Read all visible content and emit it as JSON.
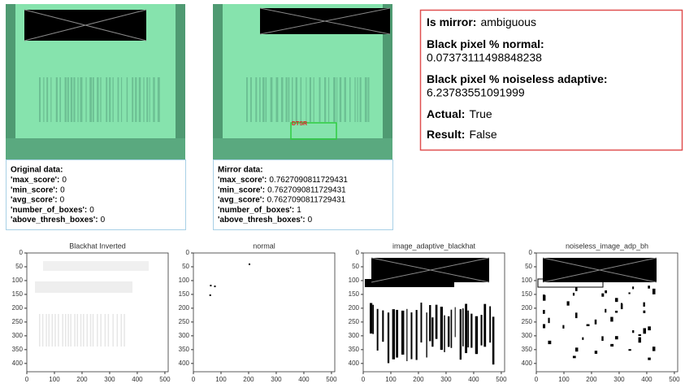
{
  "original": {
    "heading": "Original data:",
    "rows": [
      [
        "'max_score':",
        "0"
      ],
      [
        "'min_score':",
        "0"
      ],
      [
        "'avg_score':",
        "0"
      ],
      [
        "'number_of_boxes':",
        "0"
      ],
      [
        "'above_thresh_boxes':",
        "0"
      ]
    ]
  },
  "mirror": {
    "heading": "Mirror data:",
    "box_label": "DTSR",
    "rows": [
      [
        "'max_score':",
        "0.7627090811729431"
      ],
      [
        "'min_score':",
        "0.7627090811729431"
      ],
      [
        "'avg_score':",
        "0.7627090811729431"
      ],
      [
        "'number_of_boxes':",
        "1"
      ],
      [
        "'above_thresh_boxes':",
        "0"
      ]
    ]
  },
  "summary": {
    "rows": [
      [
        "Is mirror:",
        "ambiguous"
      ],
      [
        "Black pixel % normal:",
        "0.07373111498848238"
      ],
      [
        "Black pixel % noiseless adaptive:",
        "6.23783551091999"
      ],
      [
        "Actual:",
        "True"
      ],
      [
        "Result:",
        "False"
      ]
    ]
  },
  "plots": [
    {
      "title": "Blackhat Inverted",
      "xlim": [
        0,
        512
      ],
      "ylim": [
        0,
        430
      ],
      "xticks": [
        0,
        100,
        200,
        300,
        400,
        500
      ],
      "yticks": [
        0,
        50,
        100,
        150,
        200,
        250,
        300,
        350,
        400
      ]
    },
    {
      "title": "normal",
      "xlim": [
        0,
        512
      ],
      "ylim": [
        0,
        430
      ],
      "xticks": [
        0,
        100,
        200,
        300,
        400,
        500
      ],
      "yticks": [
        0,
        50,
        100,
        150,
        200,
        250,
        300,
        350,
        400
      ]
    },
    {
      "title": "image_adaptive_blackhat",
      "xlim": [
        0,
        512
      ],
      "ylim": [
        0,
        430
      ],
      "xticks": [
        0,
        100,
        200,
        300,
        400,
        500
      ],
      "yticks": [
        0,
        50,
        100,
        150,
        200,
        250,
        300,
        350,
        400
      ]
    },
    {
      "title": "noiseless_image_adp_bh",
      "xlim": [
        0,
        512
      ],
      "ylim": [
        0,
        430
      ],
      "xticks": [
        0,
        100,
        200,
        300,
        400,
        500
      ],
      "yticks": [
        0,
        50,
        100,
        150,
        200,
        250,
        300,
        350,
        400
      ]
    }
  ]
}
